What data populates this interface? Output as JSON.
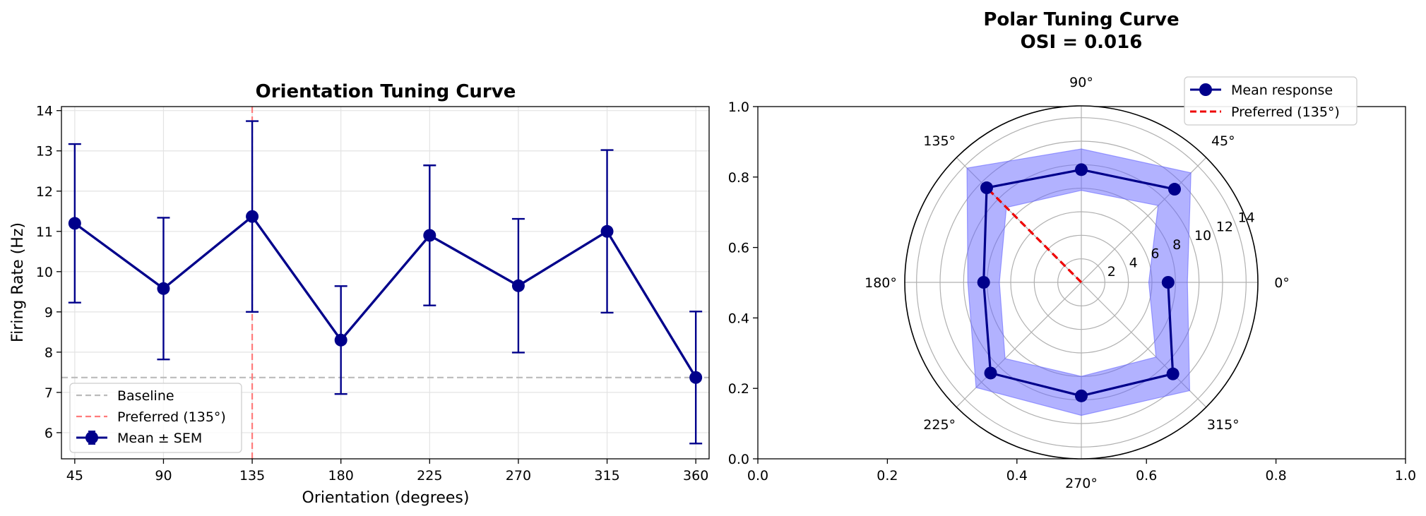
{
  "chart_data": [
    {
      "type": "line",
      "title": "Orientation Tuning Curve",
      "xlabel": "Orientation (degrees)",
      "ylabel": "Firing Rate (Hz)",
      "x": [
        45,
        90,
        135,
        180,
        225,
        270,
        315,
        360
      ],
      "x_ticks": [
        "45",
        "90",
        "135",
        "180",
        "225",
        "270",
        "315",
        "360"
      ],
      "y_ticks": [
        "6",
        "7",
        "8",
        "9",
        "10",
        "11",
        "12",
        "13",
        "14"
      ],
      "xlim": [
        38.25,
        366.75
      ],
      "ylim": [
        5.35,
        14.1
      ],
      "grid": true,
      "series": [
        {
          "name": "Mean ± SEM",
          "values": [
            11.2,
            9.58,
            11.37,
            8.3,
            10.9,
            9.65,
            11.0,
            7.37
          ],
          "sem": [
            1.97,
            1.76,
            2.37,
            1.34,
            1.74,
            1.66,
            2.02,
            1.64
          ],
          "color": "#00008b"
        }
      ],
      "reference_lines": [
        {
          "name": "Baseline",
          "orientation": "horizontal",
          "value": 7.37,
          "color": "#bbbbbb",
          "style": "dashed"
        },
        {
          "name": "Preferred (135°)",
          "orientation": "vertical",
          "value": 135,
          "color": "#ff7b7b",
          "style": "dashed"
        }
      ],
      "legend": {
        "position": "lower-left",
        "entries": [
          "Baseline",
          "Preferred (135°)",
          "Mean ± SEM"
        ]
      }
    },
    {
      "type": "polar-line",
      "title": "Polar Tuning Curve",
      "subtitle": "OSI = 0.016",
      "angles_deg": [
        45,
        90,
        135,
        180,
        225,
        270,
        315,
        360
      ],
      "r_values": [
        11.2,
        9.58,
        11.37,
        8.3,
        10.9,
        9.65,
        11.0,
        7.37
      ],
      "r_sem": [
        1.97,
        1.76,
        2.37,
        1.34,
        1.74,
        1.66,
        2.02,
        1.64
      ],
      "r_max": 15,
      "r_ticks": [
        "2",
        "4",
        "6",
        "8",
        "10",
        "12",
        "14"
      ],
      "angle_ticks": [
        "0°",
        "45°",
        "90°",
        "135°",
        "180°",
        "225°",
        "270°",
        "315°"
      ],
      "preferred_angle": 135,
      "series_color": "#00008b",
      "fill_color": "#6666ff",
      "preferred_color": "#ee0000",
      "cartesian_x_ticks": [
        "0.0",
        "0.2",
        "0.4",
        "0.6",
        "0.8",
        "1.0"
      ],
      "cartesian_y_ticks": [
        "0.0",
        "0.2",
        "0.4",
        "0.6",
        "0.8",
        "1.0"
      ],
      "legend": {
        "position": "top-right",
        "entries": [
          "Mean response",
          "Preferred (135°)"
        ]
      }
    }
  ]
}
